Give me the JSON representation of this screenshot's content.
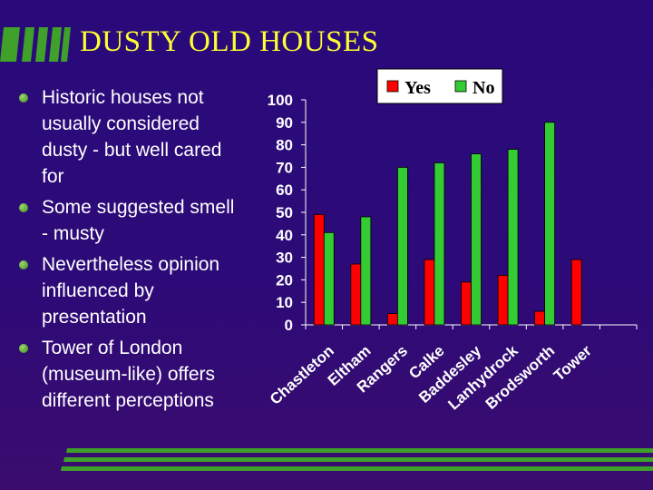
{
  "slide": {
    "title": "DUSTY OLD HOUSES",
    "bullets": [
      "Historic houses not usually considered dusty - but well cared for",
      "Some suggested smell - musty",
      "Nevertheless opinion influenced by presentation",
      "Tower of London (museum-like) offers different perceptions"
    ]
  },
  "colors": {
    "yes": "#ff0000",
    "no": "#33cc33",
    "title": "#ffff33",
    "accent": "#3fa02a"
  },
  "chart_data": {
    "type": "bar",
    "categories": [
      "Chastleton",
      "Eltham",
      "Rangers",
      "Calke",
      "Baddesley",
      "Lanhydrock",
      "Brodsworth",
      "Tower"
    ],
    "series": [
      {
        "name": "Yes",
        "values": [
          49,
          27,
          5,
          29,
          19,
          22,
          6,
          29
        ]
      },
      {
        "name": "No",
        "values": [
          41,
          48,
          70,
          72,
          76,
          78,
          90,
          null
        ]
      }
    ],
    "yticks": [
      0,
      10,
      20,
      30,
      40,
      50,
      60,
      70,
      80,
      90,
      100
    ],
    "ylim": [
      0,
      100
    ],
    "legend": "top-right"
  }
}
